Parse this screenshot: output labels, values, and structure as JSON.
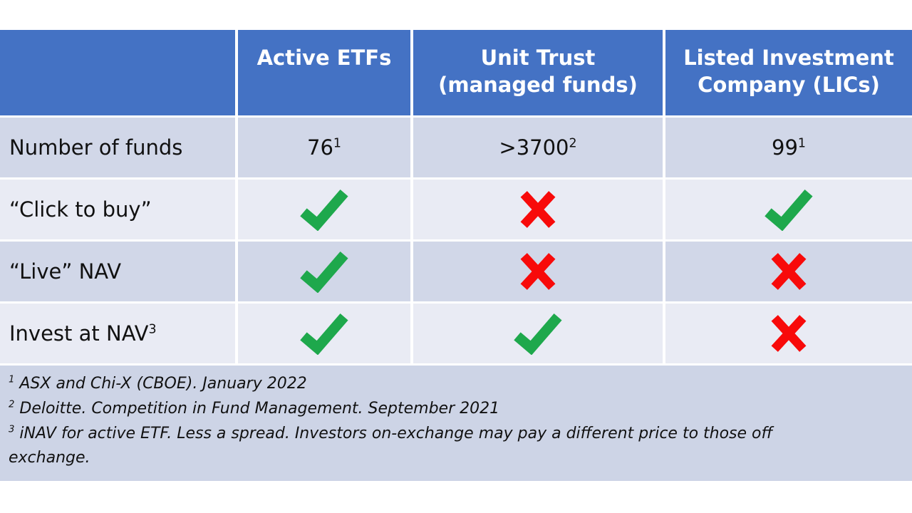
{
  "colors": {
    "header_bg": "#4472C4",
    "header_text": "#FFFFFF",
    "band_dark": "#D1D7E8",
    "band_light": "#E9EBF4",
    "footer_bg": "#CDD4E6",
    "body_text": "#111111",
    "check": "#1EA84C",
    "cross": "#F80A0A"
  },
  "header": {
    "col0": "",
    "col1_lines": [
      "Active ETFs"
    ],
    "col2_lines": [
      "Unit Trust",
      "(managed funds)"
    ],
    "col3_lines": [
      "Listed Investment",
      "Company (LICs)"
    ]
  },
  "rows": [
    {
      "label": "Number of funds",
      "cells": [
        {
          "text": "76",
          "sup": "1"
        },
        {
          "text": ">3700",
          "sup": "2"
        },
        {
          "text": "99",
          "sup": "1"
        }
      ]
    },
    {
      "label": "“Click to buy”",
      "cells": [
        "check",
        "cross",
        "check"
      ]
    },
    {
      "label": "“Live” NAV",
      "cells": [
        "check",
        "cross",
        "cross"
      ]
    },
    {
      "label": "Invest at NAV",
      "label_sup": "3",
      "cells": [
        "check",
        "check",
        "cross"
      ]
    }
  ],
  "footnotes": [
    {
      "sup": "1",
      "text": " ASX and Chi-X (CBOE). January 2022"
    },
    {
      "sup": "2",
      "text": " Deloitte. Competition in Fund Management. September 2021"
    },
    {
      "sup": "3",
      "text": " iNAV for active ETF. Less a spread. Investors on-exchange may pay a different price to those off exchange."
    }
  ]
}
